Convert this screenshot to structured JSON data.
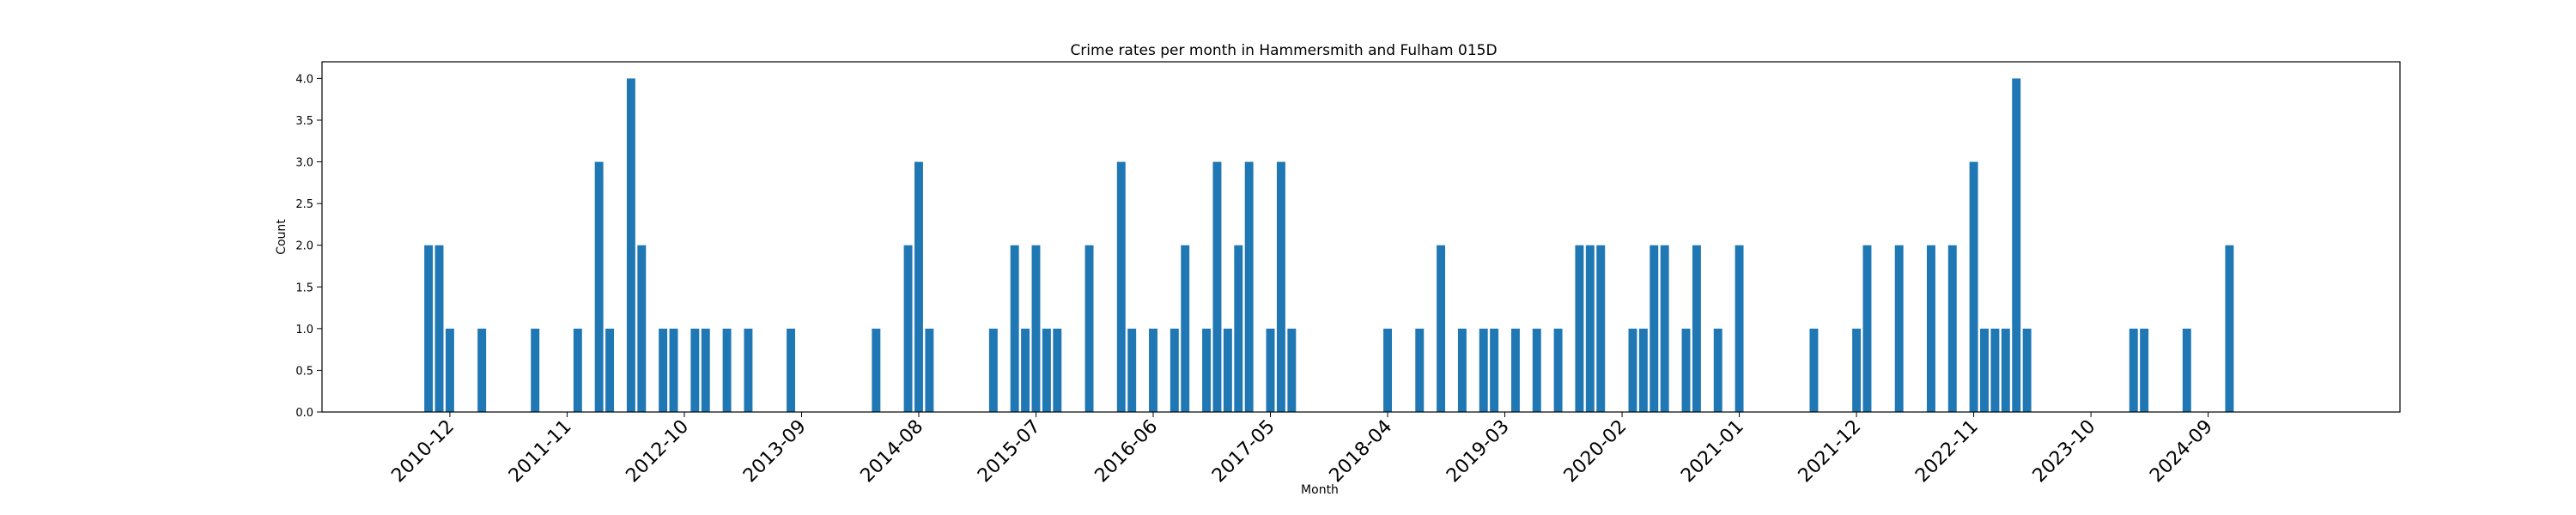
{
  "chart_data": {
    "type": "bar",
    "title": "Crime rates per month in Hammersmith and Fulham 015D",
    "xlabel": "Month",
    "ylabel": "Count",
    "ylim": [
      0,
      4.2
    ],
    "yticks": [
      0.0,
      0.5,
      1.0,
      1.5,
      2.0,
      2.5,
      3.0,
      3.5,
      4.0
    ],
    "xlim": [
      "2009-12",
      "2026-03"
    ],
    "xticks": [
      "2010-12",
      "2011-11",
      "2012-10",
      "2013-09",
      "2014-08",
      "2015-07",
      "2016-06",
      "2017-05",
      "2018-04",
      "2019-03",
      "2020-02",
      "2021-01",
      "2021-12",
      "2022-11",
      "2023-10",
      "2024-09"
    ],
    "grid": false,
    "x": [
      "2010-10",
      "2010-11",
      "2010-12",
      "2011-03",
      "2011-08",
      "2011-12",
      "2012-02",
      "2012-03",
      "2012-05",
      "2012-06",
      "2012-08",
      "2012-09",
      "2012-11",
      "2012-12",
      "2013-02",
      "2013-04",
      "2013-08",
      "2014-04",
      "2014-07",
      "2014-08",
      "2014-09",
      "2015-03",
      "2015-05",
      "2015-06",
      "2015-07",
      "2015-08",
      "2015-09",
      "2015-12",
      "2016-03",
      "2016-04",
      "2016-06",
      "2016-08",
      "2016-09",
      "2016-11",
      "2016-12",
      "2017-01",
      "2017-02",
      "2017-03",
      "2017-05",
      "2017-06",
      "2017-07",
      "2018-04",
      "2018-07",
      "2018-09",
      "2018-11",
      "2019-01",
      "2019-02",
      "2019-04",
      "2019-06",
      "2019-08",
      "2019-10",
      "2019-11",
      "2019-12",
      "2020-03",
      "2020-04",
      "2020-05",
      "2020-06",
      "2020-08",
      "2020-09",
      "2020-11",
      "2021-01",
      "2021-08",
      "2021-12",
      "2022-01",
      "2022-04",
      "2022-07",
      "2022-09",
      "2022-11",
      "2022-12",
      "2023-01",
      "2023-02",
      "2023-03",
      "2023-04",
      "2024-02",
      "2024-03",
      "2024-07",
      "2024-11"
    ],
    "values": [
      2,
      2,
      1,
      1,
      1,
      1,
      3,
      1,
      4,
      2,
      1,
      1,
      1,
      1,
      1,
      1,
      1,
      1,
      2,
      3,
      1,
      1,
      2,
      1,
      2,
      1,
      1,
      2,
      3,
      1,
      1,
      1,
      2,
      1,
      3,
      1,
      2,
      3,
      1,
      3,
      1,
      1,
      1,
      2,
      1,
      1,
      1,
      1,
      1,
      1,
      2,
      2,
      2,
      1,
      1,
      2,
      2,
      1,
      2,
      1,
      2,
      1,
      1,
      2,
      2,
      2,
      2,
      3,
      1,
      1,
      1,
      4,
      1,
      1,
      1,
      1,
      2
    ]
  }
}
